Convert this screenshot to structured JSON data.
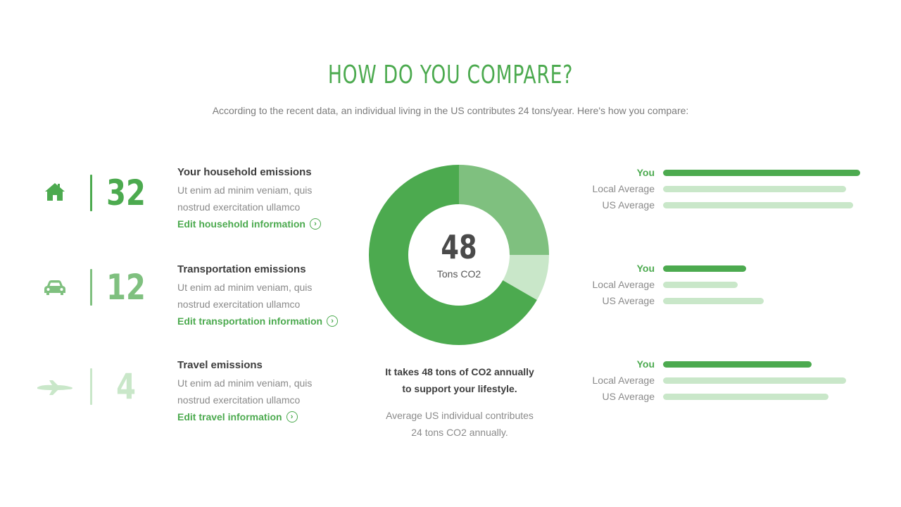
{
  "header": {
    "title": "HOW DO YOU COMPARE?",
    "subtitle": "According to the recent data, an individual living in the US contributes 24 tons/year. Here's how you compare:"
  },
  "colors": {
    "accent": "#4caa4f",
    "accent_mid": "#7fc07f",
    "accent_light": "#c9e7c9",
    "text_dark": "#3d3d3d",
    "text_muted": "#8a8a8a"
  },
  "categories": [
    {
      "icon": "house-icon",
      "value": "32",
      "heading": "Your household emissions",
      "desc_line1": "Ut enim ad minim veniam, quis",
      "desc_line2": "nostrud exercitation ullamco",
      "link": "Edit household information",
      "color": "#4caa4f"
    },
    {
      "icon": "car-icon",
      "value": "12",
      "heading": "Transportation emissions",
      "desc_line1": "Ut enim ad minim veniam, quis",
      "desc_line2": "nostrud exercitation ullamco",
      "link": "Edit transportation information",
      "color": "#7fc07f"
    },
    {
      "icon": "airplane-icon",
      "value": "4",
      "heading": "Travel emissions",
      "desc_line1": "Ut enim ad minim veniam, quis",
      "desc_line2": "nostrud exercitation ullamco",
      "link": "Edit travel information",
      "color": "#c9e7c9"
    }
  ],
  "donut": {
    "total": "48",
    "unit": "Tons CO2"
  },
  "summary": {
    "line1": "It takes 48 tons of CO2 annually",
    "line2": "to support your lifestyle.",
    "line3": "Average US individual contributes",
    "line4": "24 tons CO2 annually."
  },
  "comparisons": [
    {
      "label_you": "You",
      "label_local": "Local Average",
      "label_us": "US Average",
      "you": 1.0,
      "local": 0.93,
      "us": 0.965
    },
    {
      "label_you": "You",
      "label_local": "Local Average",
      "label_us": "US Average",
      "you": 0.42,
      "local": 0.38,
      "us": 0.51
    },
    {
      "label_you": "You",
      "label_local": "Local Average",
      "label_us": "US Average",
      "you": 0.755,
      "local": 0.93,
      "us": 0.84
    }
  ]
}
